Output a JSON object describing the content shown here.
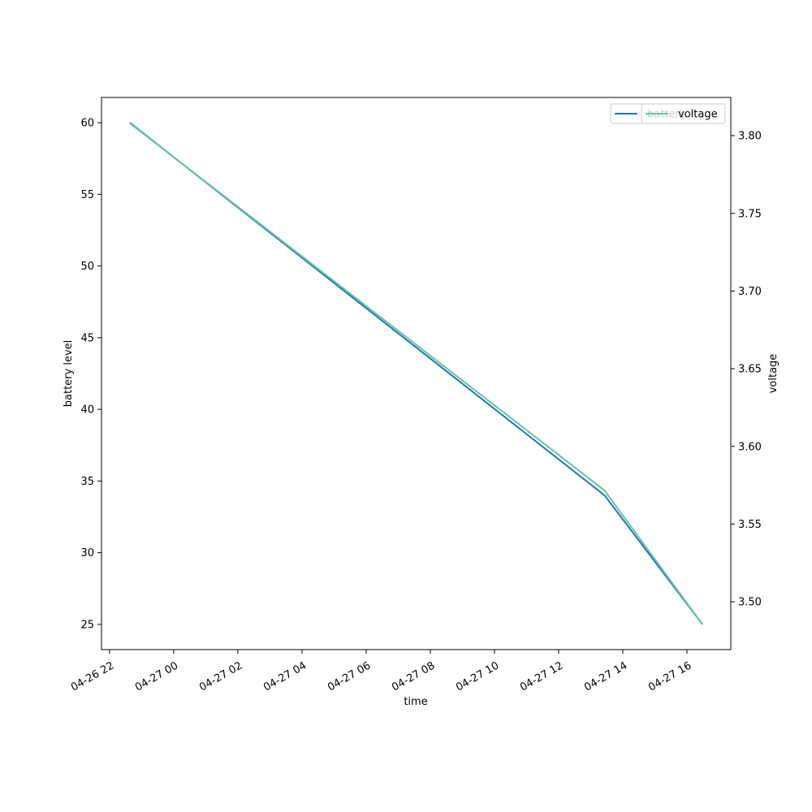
{
  "chart_data": {
    "type": "line",
    "x_label": "time",
    "y_label": "battery level",
    "y2_label": "voltage",
    "x": [
      "04-26 22:38",
      "04-27 13:26",
      "04-27 16:29"
    ],
    "series": [
      {
        "name": "battery",
        "color": "#1f77b4",
        "values": [
          60,
          34,
          25
        ]
      },
      {
        "name": "voltage",
        "color": "#66c2a5",
        "axis": "y2",
        "values": [
          3.808,
          3.5716,
          3.4854
        ]
      }
    ],
    "xlim": [
      "04-26 21:45",
      "04-27 17:22"
    ],
    "xticks": [
      "04-26 22",
      "04-27 00",
      "04-27 02",
      "04-27 04",
      "04-27 06",
      "04-27 08",
      "04-27 10",
      "04-27 12",
      "04-27 14",
      "04-27 16"
    ],
    "ylim": [
      23.24,
      61.76
    ],
    "yticks": [
      25,
      30,
      35,
      40,
      45,
      50,
      55,
      60
    ],
    "y2lim": [
      3.4692,
      3.8246
    ],
    "y2ticks": [
      {
        "value": 3.5,
        "label": "3.50"
      },
      3.55,
      {
        "value": 3.6,
        "label": "3.60"
      },
      3.65,
      {
        "value": 3.7,
        "label": "3.70"
      },
      3.75,
      {
        "value": 3.8,
        "label": "3.80"
      }
    ],
    "grid": false,
    "legend": "upper right"
  }
}
